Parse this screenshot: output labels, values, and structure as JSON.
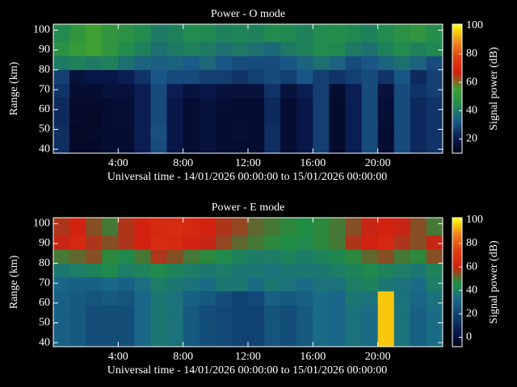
{
  "chart_data": [
    {
      "type": "heatmap",
      "title": "Power - O mode",
      "x_label": "Universal time - 14/01/2026 00:00:00 to 15/01/2026 00:00:00",
      "y_label": "Range (km)",
      "colorbar_label": "Signal power (dB)",
      "xlim": [
        0,
        24
      ],
      "xticks": [
        {
          "value": 4,
          "label": "4:00"
        },
        {
          "value": 8,
          "label": "8:00"
        },
        {
          "value": 12,
          "label": "12:00"
        },
        {
          "value": 16,
          "label": "16:00"
        },
        {
          "value": 20,
          "label": "20:00"
        }
      ],
      "ylim": [
        38,
        103
      ],
      "yticks": [
        40,
        50,
        60,
        70,
        80,
        90,
        100
      ],
      "xbins": [
        0,
        1,
        2,
        3,
        4,
        5,
        6,
        7,
        8,
        9,
        10,
        11,
        12,
        13,
        14,
        15,
        16,
        17,
        18,
        19,
        20,
        21,
        22,
        23,
        24
      ],
      "ybins": [
        38,
        45,
        52,
        59,
        66,
        73,
        80,
        87,
        94,
        103
      ],
      "clim": [
        10,
        101
      ],
      "cticks": [
        20,
        40,
        60,
        80,
        100
      ],
      "colormap": [
        "#000010",
        "#0a1a50",
        "#1a5a8a",
        "#208a50",
        "#40a030",
        "#d02010",
        "#e04010",
        "#f09020",
        "#ffff00"
      ],
      "values": [
        [
          25,
          14,
          14,
          16,
          16,
          22,
          30,
          20,
          16,
          18,
          16,
          16,
          16,
          25,
          16,
          20,
          28,
          15,
          22,
          30,
          16,
          30,
          24,
          26
        ],
        [
          25,
          14,
          15,
          16,
          16,
          22,
          31,
          20,
          16,
          18,
          16,
          17,
          16,
          25,
          16,
          20,
          28,
          15,
          22,
          30,
          16,
          30,
          24,
          26
        ],
        [
          24,
          15,
          14,
          16,
          17,
          22,
          30,
          20,
          16,
          18,
          16,
          16,
          16,
          24,
          16,
          20,
          28,
          15,
          22,
          30,
          17,
          30,
          24,
          26
        ],
        [
          24,
          15,
          15,
          16,
          17,
          22,
          30,
          20,
          16,
          18,
          17,
          16,
          16,
          24,
          16,
          20,
          28,
          15,
          22,
          30,
          17,
          30,
          24,
          26
        ],
        [
          26,
          16,
          16,
          18,
          18,
          22,
          30,
          22,
          18,
          20,
          18,
          18,
          18,
          26,
          18,
          22,
          28,
          16,
          22,
          30,
          18,
          30,
          26,
          28
        ],
        [
          28,
          18,
          20,
          20,
          22,
          26,
          32,
          30,
          30,
          28,
          28,
          26,
          28,
          30,
          28,
          32,
          28,
          26,
          28,
          30,
          26,
          32,
          24,
          28
        ],
        [
          40,
          42,
          40,
          42,
          38,
          35,
          34,
          35,
          33,
          36,
          32,
          30,
          30,
          30,
          32,
          35,
          38,
          35,
          30,
          32,
          35,
          38,
          35,
          30
        ],
        [
          48,
          52,
          55,
          50,
          45,
          42,
          38,
          40,
          42,
          40,
          38,
          40,
          38,
          36,
          40,
          42,
          45,
          44,
          40,
          38,
          42,
          45,
          42,
          44
        ],
        [
          45,
          50,
          55,
          50,
          48,
          45,
          40,
          42,
          45,
          44,
          42,
          43,
          42,
          45,
          44,
          42,
          45,
          46,
          44,
          42,
          45,
          48,
          50,
          46
        ]
      ]
    },
    {
      "type": "heatmap",
      "title": "Power - E mode",
      "x_label": "Universal time - 14/01/2026 00:00:00 to 15/01/2026 00:00:00",
      "y_label": "Range (km)",
      "colorbar_label": "Signal power (dB)",
      "xlim": [
        0,
        24
      ],
      "xticks": [
        {
          "value": 4,
          "label": "4:00"
        },
        {
          "value": 8,
          "label": "8:00"
        },
        {
          "value": 12,
          "label": "12:00"
        },
        {
          "value": 16,
          "label": "16:00"
        },
        {
          "value": 20,
          "label": "20:00"
        }
      ],
      "ylim": [
        38,
        103
      ],
      "yticks": [
        40,
        50,
        60,
        70,
        80,
        90,
        100
      ],
      "xbins": [
        0,
        1,
        2,
        3,
        4,
        5,
        6,
        7,
        8,
        9,
        10,
        11,
        12,
        13,
        14,
        15,
        16,
        17,
        18,
        19,
        20,
        21,
        22,
        23,
        24
      ],
      "ybins": [
        38,
        45,
        52,
        59,
        66,
        73,
        80,
        87,
        94,
        103
      ],
      "clim": [
        -8,
        102
      ],
      "cticks": [
        0,
        20,
        40,
        60,
        80,
        100
      ],
      "colormap": [
        "#000010",
        "#0a1a50",
        "#104070",
        "#1a6a8a",
        "#209040",
        "#d02010",
        "#e04010",
        "#f08020",
        "#ffff00"
      ],
      "values": [
        [
          30,
          28,
          24,
          24,
          24,
          32,
          38,
          36,
          28,
          24,
          22,
          20,
          20,
          26,
          24,
          28,
          34,
          32,
          36,
          34,
          96,
          36,
          30,
          34
        ],
        [
          30,
          28,
          24,
          24,
          24,
          32,
          38,
          36,
          28,
          24,
          22,
          20,
          20,
          26,
          24,
          28,
          34,
          32,
          36,
          34,
          96,
          36,
          30,
          34
        ],
        [
          30,
          28,
          24,
          24,
          24,
          32,
          38,
          36,
          28,
          24,
          22,
          20,
          20,
          26,
          24,
          28,
          34,
          32,
          36,
          34,
          96,
          36,
          30,
          34
        ],
        [
          30,
          28,
          26,
          28,
          26,
          32,
          38,
          36,
          30,
          28,
          24,
          20,
          22,
          30,
          28,
          30,
          34,
          32,
          38,
          36,
          96,
          36,
          32,
          36
        ],
        [
          32,
          30,
          30,
          32,
          30,
          35,
          40,
          38,
          36,
          34,
          38,
          38,
          34,
          38,
          36,
          34,
          36,
          36,
          40,
          42,
          38,
          36,
          34,
          40
        ],
        [
          38,
          40,
          42,
          45,
          40,
          42,
          45,
          42,
          40,
          38,
          40,
          38,
          38,
          36,
          38,
          38,
          38,
          40,
          42,
          45,
          42,
          40,
          38,
          42
        ],
        [
          50,
          52,
          55,
          48,
          45,
          50,
          58,
          55,
          50,
          48,
          45,
          42,
          40,
          40,
          42,
          40,
          42,
          44,
          48,
          52,
          55,
          50,
          48,
          55
        ],
        [
          60,
          64,
          58,
          55,
          58,
          62,
          66,
          65,
          62,
          60,
          56,
          52,
          50,
          48,
          46,
          45,
          48,
          50,
          58,
          62,
          64,
          58,
          55,
          60
        ],
        [
          58,
          62,
          55,
          50,
          58,
          62,
          65,
          66,
          64,
          62,
          58,
          56,
          52,
          50,
          48,
          46,
          48,
          50,
          55,
          60,
          62,
          60,
          55,
          50
        ]
      ]
    }
  ]
}
